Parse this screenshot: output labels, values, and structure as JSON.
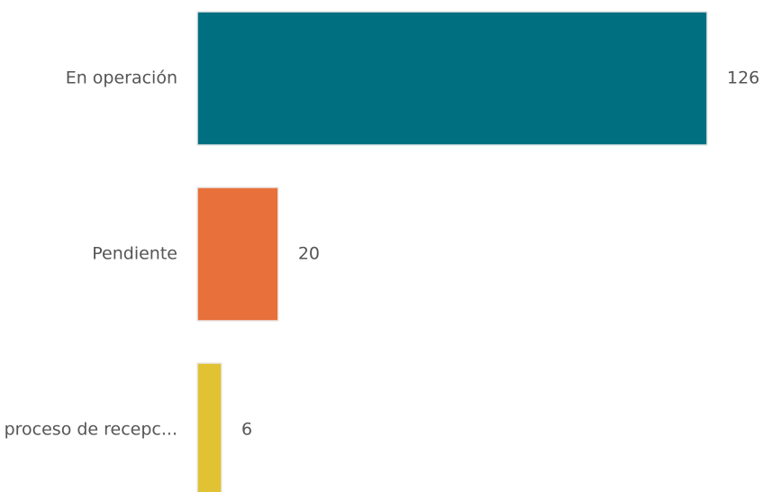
{
  "chart_data": {
    "type": "bar",
    "orientation": "horizontal",
    "categories": [
      "En operación",
      "Pendiente",
      "En proceso de recepc..."
    ],
    "values": [
      126,
      20,
      6
    ],
    "colors": [
      "#007080",
      "#e8703a",
      "#e0c232"
    ]
  }
}
